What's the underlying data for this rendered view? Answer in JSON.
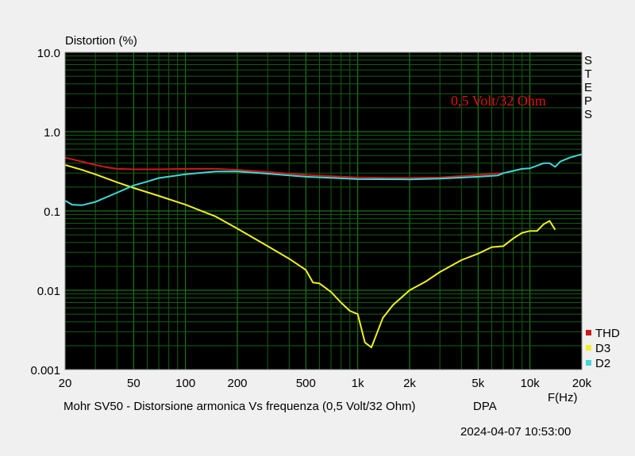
{
  "chart_data": {
    "type": "line",
    "title": "Distortion (%)",
    "xlabel": "F(Hz)",
    "x_scale": "log",
    "y_scale": "log",
    "xlim": [
      20,
      20000
    ],
    "ylim": [
      0.001,
      10
    ],
    "grid": true,
    "x_ticks": [
      {
        "v": 20,
        "label": "20"
      },
      {
        "v": 50,
        "label": "50"
      },
      {
        "v": 100,
        "label": "100"
      },
      {
        "v": 200,
        "label": "200"
      },
      {
        "v": 500,
        "label": "500"
      },
      {
        "v": 1000,
        "label": "1k"
      },
      {
        "v": 2000,
        "label": "2k"
      },
      {
        "v": 5000,
        "label": "5k"
      },
      {
        "v": 10000,
        "label": "10k"
      },
      {
        "v": 20000,
        "label": "20k"
      }
    ],
    "y_ticks": [
      {
        "v": 10,
        "label": "10.0"
      },
      {
        "v": 1,
        "label": "1.0"
      },
      {
        "v": 0.1,
        "label": "0.1"
      },
      {
        "v": 0.01,
        "label": "0.01"
      },
      {
        "v": 0.001,
        "label": "0.001"
      }
    ],
    "side_text": "STEPS",
    "annotation": "0,5 Volt/32 Ohm",
    "legend_position": "bottom-right",
    "series": [
      {
        "name": "THD",
        "color": "#d01818",
        "points": [
          [
            20,
            0.47
          ],
          [
            25,
            0.42
          ],
          [
            30,
            0.38
          ],
          [
            35,
            0.355
          ],
          [
            40,
            0.34
          ],
          [
            50,
            0.335
          ],
          [
            70,
            0.335
          ],
          [
            100,
            0.34
          ],
          [
            150,
            0.34
          ],
          [
            200,
            0.33
          ],
          [
            300,
            0.31
          ],
          [
            500,
            0.285
          ],
          [
            700,
            0.275
          ],
          [
            1000,
            0.265
          ],
          [
            1500,
            0.262
          ],
          [
            2000,
            0.262
          ],
          [
            3000,
            0.265
          ],
          [
            5000,
            0.285
          ],
          [
            7000,
            0.3
          ]
        ]
      },
      {
        "name": "D3",
        "color": "#f0f020",
        "points": [
          [
            20,
            0.38
          ],
          [
            25,
            0.33
          ],
          [
            30,
            0.29
          ],
          [
            40,
            0.23
          ],
          [
            50,
            0.195
          ],
          [
            70,
            0.155
          ],
          [
            100,
            0.12
          ],
          [
            150,
            0.085
          ],
          [
            200,
            0.06
          ],
          [
            300,
            0.036
          ],
          [
            400,
            0.025
          ],
          [
            500,
            0.018
          ],
          [
            550,
            0.0125
          ],
          [
            600,
            0.0122
          ],
          [
            700,
            0.0095
          ],
          [
            800,
            0.007
          ],
          [
            900,
            0.0055
          ],
          [
            1000,
            0.005
          ],
          [
            1100,
            0.0022
          ],
          [
            1200,
            0.0019
          ],
          [
            1400,
            0.0045
          ],
          [
            1600,
            0.0065
          ],
          [
            2000,
            0.01
          ],
          [
            2500,
            0.013
          ],
          [
            3000,
            0.017
          ],
          [
            4000,
            0.024
          ],
          [
            5000,
            0.029
          ],
          [
            6000,
            0.035
          ],
          [
            7000,
            0.036
          ],
          [
            8000,
            0.045
          ],
          [
            9000,
            0.053
          ],
          [
            10000,
            0.056
          ],
          [
            11000,
            0.056
          ],
          [
            12000,
            0.068
          ],
          [
            13000,
            0.075
          ],
          [
            14000,
            0.058
          ]
        ]
      },
      {
        "name": "D2",
        "color": "#40d8d8",
        "points": [
          [
            20,
            0.135
          ],
          [
            22,
            0.12
          ],
          [
            25,
            0.118
          ],
          [
            30,
            0.13
          ],
          [
            40,
            0.17
          ],
          [
            50,
            0.21
          ],
          [
            60,
            0.235
          ],
          [
            70,
            0.26
          ],
          [
            100,
            0.29
          ],
          [
            150,
            0.315
          ],
          [
            200,
            0.315
          ],
          [
            300,
            0.295
          ],
          [
            500,
            0.27
          ],
          [
            700,
            0.262
          ],
          [
            1000,
            0.252
          ],
          [
            2000,
            0.25
          ],
          [
            3000,
            0.255
          ],
          [
            5000,
            0.27
          ],
          [
            6500,
            0.28
          ],
          [
            7000,
            0.3
          ],
          [
            8000,
            0.32
          ],
          [
            9000,
            0.34
          ],
          [
            10000,
            0.345
          ],
          [
            12000,
            0.4
          ],
          [
            13000,
            0.4
          ],
          [
            14000,
            0.36
          ],
          [
            15000,
            0.42
          ],
          [
            17000,
            0.47
          ],
          [
            20000,
            0.52
          ]
        ]
      }
    ]
  },
  "footer": {
    "caption": "Mohr SV50 - Distorsione armonica Vs frequenza (0,5 Volt/32 Ohm)",
    "tool": "DPA",
    "timestamp": "2024-04-07 10:53:00"
  }
}
